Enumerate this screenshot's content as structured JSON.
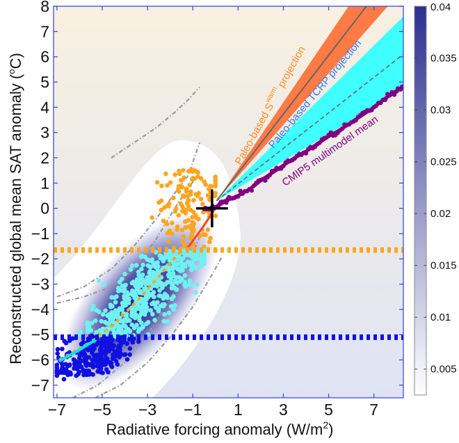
{
  "chart_data": {
    "type": "scatter",
    "title": "",
    "xlabel": "Radiative forcing anomaly (W/m",
    "xlabel_sup": "2",
    "xlabel_end": ")",
    "ylabel": "Reconstructed global  mean SAT anomaly (",
    "ylabel_sup": "o",
    "ylabel_end": "C)",
    "xlim": [
      -7.15,
      8.3
    ],
    "ylim": [
      -7.5,
      8
    ],
    "xticks": [
      -7,
      -5,
      -3,
      -1,
      1,
      3,
      5,
      7
    ],
    "xtick_labels": [
      "−7",
      "−5",
      "−3",
      "−1",
      "1",
      "3",
      "5",
      "7"
    ],
    "yticks": [
      8,
      7,
      6,
      5,
      4,
      3,
      2,
      1,
      0,
      -1,
      -2,
      -3,
      -4,
      -5,
      -6,
      -7
    ],
    "ytick_labels": [
      "8",
      "7",
      "6",
      "5",
      "4",
      "3",
      "2",
      "1",
      "0",
      "−1",
      "−2",
      "−3",
      "−4",
      "−5",
      "−6",
      "−7"
    ],
    "grid": false,
    "colorbar": {
      "range": [
        0.0025,
        0.04
      ],
      "ticks": [
        0.04,
        0.035,
        0.03,
        0.025,
        0.02,
        0.015,
        0.01,
        0.005
      ],
      "tick_labels": [
        "0.04",
        "0.035",
        "0.03",
        "0.025",
        "0.02",
        "0.015",
        "0.01",
        "0.005"
      ],
      "color_low": "#ffffff",
      "color_high": "#2b2f8f"
    },
    "colors": {
      "background_top": "#f8f0e0",
      "background_bottom": "#dfe3f4",
      "axis": "#3b4de0",
      "warm_points": "#ffa51f",
      "cold_points": "#70f0f0",
      "coldest_points": "#1010e0",
      "cmip5": "#800080",
      "swarm_band": "#ff7a45",
      "tcrp_band": "#40ffff",
      "fit_red": "#ff4422",
      "fit_cyan": "#00e6e6",
      "threshold_orange": "#ffa51f",
      "threshold_blue": "#1010e8",
      "dashed_curves": "#999999"
    },
    "threshold_lines": [
      {
        "name": "orange-threshold",
        "y": -1.65
      },
      {
        "name": "blue-threshold",
        "y": -5.1
      }
    ],
    "present_day_marker": {
      "x": -0.15,
      "y": 0.0,
      "x_err": 0.7,
      "y_err": 0.75
    },
    "projections": [
      {
        "name": "Paleo-based S^warm projection",
        "label_main": "Paleo-based S",
        "label_sup": "warm",
        "label_end": " projection",
        "origin": [
          0.05,
          0.3
        ],
        "end_x": 8.3,
        "upper_end_y": 11.2,
        "central_end_y": 9.9,
        "lower_end_y": 8.7
      },
      {
        "name": "Paleo-based TCRP projection",
        "label": "Paleo-based TCRP projection",
        "origin": [
          0.05,
          0.3
        ],
        "end_x": 8.3,
        "upper_end_y": 7.6,
        "central_end_y": 6.1,
        "lower_end_y": 4.7
      }
    ],
    "cmip5": {
      "name": "CMIP5 multimodel mean",
      "x": [
        -0.5,
        -0.2,
        0.0,
        0.3,
        0.6,
        1.0,
        1.5,
        2.0,
        2.5,
        3.0,
        3.5,
        4.0,
        4.5,
        5.0,
        5.5,
        6.0,
        6.5,
        7.0,
        7.5,
        8.0,
        8.3
      ],
      "y": [
        0.0,
        0.0,
        0.05,
        0.2,
        0.35,
        0.5,
        0.75,
        1.1,
        1.4,
        1.7,
        2.0,
        2.25,
        2.55,
        2.85,
        3.1,
        3.4,
        3.7,
        4.0,
        4.35,
        4.65,
        4.8
      ]
    },
    "fit_curves": [
      {
        "name": "red-fit",
        "x": [
          -1.3,
          -0.6,
          0.0
        ],
        "y": [
          -1.65,
          -0.8,
          0.0
        ]
      },
      {
        "name": "orange-dotted-fit",
        "x": [
          -6.9,
          -5.5,
          -4.5,
          -3.5,
          -2.5,
          -1.5
        ],
        "y": [
          -6.0,
          -5.3,
          -4.6,
          -3.7,
          -2.7,
          -1.65
        ]
      },
      {
        "name": "cyan-fit",
        "x": [
          -6.9,
          -6.0,
          -5.2
        ],
        "y": [
          -6.05,
          -5.6,
          -5.15
        ]
      }
    ],
    "dashed_curves": [
      {
        "x": [
          -4.6,
          -3.6,
          -2.6,
          -1.8,
          -1.2,
          -0.7
        ],
        "y": [
          2.0,
          2.6,
          3.2,
          3.8,
          4.3,
          4.8
        ]
      },
      {
        "x": [
          -7.0,
          -5.8,
          -4.6,
          -3.6,
          -2.6,
          -1.8,
          -1.2,
          -0.7
        ],
        "y": [
          -3.5,
          -3.1,
          -2.4,
          -1.5,
          -0.4,
          0.6,
          1.3,
          2.6
        ]
      },
      {
        "x": [
          -7.0,
          -5.8,
          -4.6,
          -3.6,
          -2.6,
          -1.8,
          -1.2,
          -0.7
        ],
        "y": [
          -3.75,
          -3.5,
          -3.1,
          -2.4,
          -1.2,
          0.0,
          0.8,
          1.4
        ]
      },
      {
        "x": [
          -6.3,
          -5.2,
          -4.0,
          -3.0,
          -2.0,
          -1.2,
          -0.5
        ],
        "y": [
          -7.5,
          -7.0,
          -6.1,
          -5.0,
          -3.6,
          -2.2,
          -0.7
        ]
      },
      {
        "x": [
          -5.3,
          -4.2,
          -3.0,
          -2.0,
          -1.0,
          -0.2,
          0.3
        ],
        "y": [
          -7.5,
          -7.0,
          -6.1,
          -5.1,
          -3.9,
          -2.7,
          -1.9
        ]
      }
    ],
    "point_clouds": [
      {
        "name": "warm-points",
        "count": 140,
        "x_range": [
          -2.8,
          0.0
        ],
        "y_range": [
          -1.65,
          1.5
        ]
      },
      {
        "name": "cold-points",
        "count": 520,
        "x_range": [
          -6.5,
          -0.5
        ],
        "y_range": [
          -5.1,
          -1.65
        ]
      },
      {
        "name": "coldest-points",
        "count": 260,
        "x_range": [
          -7.0,
          -2.0
        ],
        "y_range": [
          -6.6,
          -5.1
        ]
      }
    ],
    "annotations": [
      {
        "text": "CMIP5 multimodel mean",
        "color": "#800080"
      },
      {
        "text": "Paleo-based TCRP projection",
        "color": "#3377ee"
      },
      {
        "text": "Paleo-based S",
        "sup": "warm",
        "end": " projection",
        "color": "#ff8a1f"
      }
    ]
  }
}
